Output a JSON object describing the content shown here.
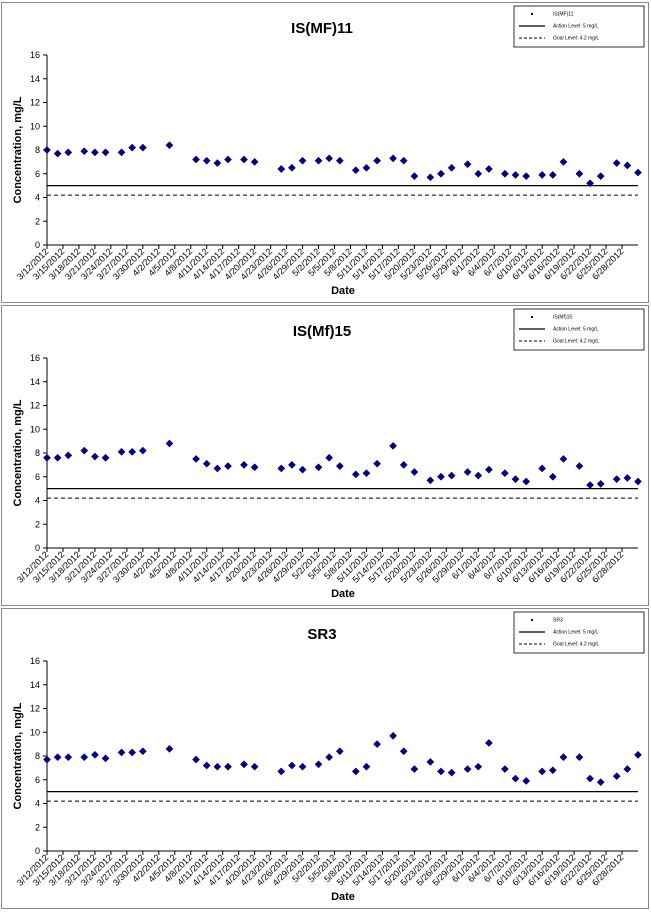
{
  "chart_data": [
    {
      "type": "scatter",
      "title": "IS(MF)11",
      "xlabel": "Date",
      "ylabel": "Concentration, mg/L",
      "ylim": [
        0,
        16
      ],
      "yticks": [
        0,
        2,
        4,
        6,
        8,
        10,
        12,
        14,
        16
      ],
      "grid": false,
      "legend_position": "top-right",
      "xtick_labels": [
        "3/12/2012",
        "3/15/2012",
        "3/18/2012",
        "3/21/2012",
        "3/24/2012",
        "3/27/2012",
        "3/30/2012",
        "4/2/2012",
        "4/5/2012",
        "4/8/2012",
        "4/11/2012",
        "4/14/2012",
        "4/17/2012",
        "4/20/2012",
        "4/23/2012",
        "4/26/2012",
        "4/29/2012",
        "5/2/2012",
        "5/5/2012",
        "5/8/2012",
        "5/11/2012",
        "5/14/2012",
        "5/17/2012",
        "5/20/2012",
        "5/23/2012",
        "5/26/2012",
        "5/29/2012",
        "6/1/2012",
        "6/4/2012",
        "6/7/2012",
        "6/10/2012",
        "6/13/2012",
        "6/16/2012",
        "6/19/2012",
        "6/22/2012",
        "6/25/2012",
        "6/28/2012"
      ],
      "series": [
        {
          "name": "IS(MF)11",
          "marker": "diamond",
          "color": "#000080",
          "x": [
            "3/12/2012",
            "3/14/2012",
            "3/16/2012",
            "3/19/2012",
            "3/21/2012",
            "3/23/2012",
            "3/26/2012",
            "3/28/2012",
            "3/30/2012",
            "4/4/2012",
            "4/9/2012",
            "4/11/2012",
            "4/13/2012",
            "4/15/2012",
            "4/18/2012",
            "4/20/2012",
            "4/25/2012",
            "4/27/2012",
            "4/29/2012",
            "5/2/2012",
            "5/4/2012",
            "5/6/2012",
            "5/9/2012",
            "5/11/2012",
            "5/13/2012",
            "5/16/2012",
            "5/18/2012",
            "5/20/2012",
            "5/23/2012",
            "5/25/2012",
            "5/27/2012",
            "5/30/2012",
            "6/1/2012",
            "6/3/2012",
            "6/6/2012",
            "6/8/2012",
            "6/10/2012",
            "6/13/2012",
            "6/15/2012",
            "6/17/2012",
            "6/20/2012",
            "6/22/2012",
            "6/24/2012",
            "6/27/2012",
            "6/29/2012",
            "7/1/2012"
          ],
          "y": [
            8.0,
            7.7,
            7.8,
            7.9,
            7.8,
            7.8,
            7.8,
            8.2,
            8.2,
            8.4,
            7.2,
            7.1,
            6.9,
            7.2,
            7.2,
            7.0,
            6.4,
            6.5,
            7.1,
            7.1,
            7.3,
            7.1,
            6.3,
            6.5,
            7.1,
            7.3,
            7.1,
            5.8,
            5.7,
            6.0,
            6.5,
            6.8,
            6.0,
            6.4,
            6.0,
            5.9,
            5.8,
            5.9,
            5.9,
            7.0,
            6.0,
            5.2,
            5.8,
            6.9,
            6.7,
            6.1
          ]
        }
      ],
      "reference_lines": [
        {
          "name": "Action Level: 5 mg/L",
          "y": 5.0,
          "style": "solid"
        },
        {
          "name": "Goal Level: 4.2 mg/L",
          "y": 4.2,
          "style": "dashed"
        }
      ]
    },
    {
      "type": "scatter",
      "title": "IS(Mf)15",
      "xlabel": "Date",
      "ylabel": "Concentration, mg/L",
      "ylim": [
        0,
        16
      ],
      "yticks": [
        0,
        2,
        4,
        6,
        8,
        10,
        12,
        14,
        16
      ],
      "grid": false,
      "legend_position": "top-right",
      "xtick_labels": [
        "3/12/2012",
        "3/15/2012",
        "3/18/2012",
        "3/21/2012",
        "3/24/2012",
        "3/27/2012",
        "3/30/2012",
        "4/2/2012",
        "4/5/2012",
        "4/8/2012",
        "4/11/2012",
        "4/14/2012",
        "4/17/2012",
        "4/20/2012",
        "4/23/2012",
        "4/26/2012",
        "4/29/2012",
        "5/2/2012",
        "5/5/2012",
        "5/8/2012",
        "5/11/2012",
        "5/14/2012",
        "5/17/2012",
        "5/20/2012",
        "5/23/2012",
        "5/26/2012",
        "5/29/2012",
        "6/1/2012",
        "6/4/2012",
        "6/7/2012",
        "6/10/2012",
        "6/13/2012",
        "6/16/2012",
        "6/19/2012",
        "6/22/2012",
        "6/25/2012",
        "6/28/2012"
      ],
      "series": [
        {
          "name": "IS(Mf)15",
          "marker": "diamond",
          "color": "#000080",
          "x": [
            "3/12/2012",
            "3/14/2012",
            "3/16/2012",
            "3/19/2012",
            "3/21/2012",
            "3/23/2012",
            "3/26/2012",
            "3/28/2012",
            "3/30/2012",
            "4/4/2012",
            "4/9/2012",
            "4/11/2012",
            "4/13/2012",
            "4/15/2012",
            "4/18/2012",
            "4/20/2012",
            "4/25/2012",
            "4/27/2012",
            "4/29/2012",
            "5/2/2012",
            "5/4/2012",
            "5/6/2012",
            "5/9/2012",
            "5/11/2012",
            "5/13/2012",
            "5/16/2012",
            "5/18/2012",
            "5/20/2012",
            "5/23/2012",
            "5/25/2012",
            "5/27/2012",
            "5/30/2012",
            "6/1/2012",
            "6/3/2012",
            "6/6/2012",
            "6/8/2012",
            "6/10/2012",
            "6/13/2012",
            "6/15/2012",
            "6/17/2012",
            "6/20/2012",
            "6/22/2012",
            "6/24/2012",
            "6/27/2012",
            "6/29/2012",
            "7/1/2012"
          ],
          "y": [
            7.6,
            7.6,
            7.8,
            8.2,
            7.7,
            7.6,
            8.1,
            8.1,
            8.2,
            8.8,
            7.5,
            7.1,
            6.7,
            6.9,
            7.0,
            6.8,
            6.7,
            7.0,
            6.6,
            6.8,
            7.6,
            6.9,
            6.2,
            6.3,
            7.1,
            8.6,
            7.0,
            6.4,
            5.7,
            6.0,
            6.1,
            6.4,
            6.1,
            6.6,
            6.3,
            5.8,
            5.6,
            6.7,
            6.0,
            7.5,
            6.9,
            5.3,
            5.4,
            5.8,
            5.9,
            5.6
          ]
        }
      ],
      "reference_lines": [
        {
          "name": "Action Level: 5 mg/L",
          "y": 5.0,
          "style": "solid"
        },
        {
          "name": "Goal Level: 4.2 mg/L",
          "y": 4.2,
          "style": "dashed"
        }
      ]
    },
    {
      "type": "scatter",
      "title": "SR3",
      "xlabel": "Date",
      "ylabel": "Concentration, mg/L",
      "ylim": [
        0,
        16
      ],
      "yticks": [
        0,
        2,
        4,
        6,
        8,
        10,
        12,
        14,
        16
      ],
      "grid": false,
      "legend_position": "top-right",
      "xtick_labels": [
        "3/12/2012",
        "3/15/2012",
        "3/18/2012",
        "3/21/2012",
        "3/24/2012",
        "3/27/2012",
        "3/30/2012",
        "4/2/2012",
        "4/5/2012",
        "4/8/2012",
        "4/11/2012",
        "4/14/2012",
        "4/17/2012",
        "4/20/2012",
        "4/23/2012",
        "4/26/2012",
        "4/29/2012",
        "5/2/2012",
        "5/5/2012",
        "5/8/2012",
        "5/11/2012",
        "5/14/2012",
        "5/17/2012",
        "5/20/2012",
        "5/23/2012",
        "5/26/2012",
        "5/29/2012",
        "6/1/2012",
        "6/4/2012",
        "6/7/2012",
        "6/10/2012",
        "6/13/2012",
        "6/16/2012",
        "6/19/2012",
        "6/22/2012",
        "6/25/2012",
        "6/28/2012"
      ],
      "series": [
        {
          "name": "SR3",
          "marker": "diamond",
          "color": "#000080",
          "x": [
            "3/12/2012",
            "3/14/2012",
            "3/16/2012",
            "3/19/2012",
            "3/21/2012",
            "3/23/2012",
            "3/26/2012",
            "3/28/2012",
            "3/30/2012",
            "4/4/2012",
            "4/9/2012",
            "4/11/2012",
            "4/13/2012",
            "4/15/2012",
            "4/18/2012",
            "4/20/2012",
            "4/25/2012",
            "4/27/2012",
            "4/29/2012",
            "5/2/2012",
            "5/4/2012",
            "5/6/2012",
            "5/9/2012",
            "5/11/2012",
            "5/13/2012",
            "5/16/2012",
            "5/18/2012",
            "5/20/2012",
            "5/23/2012",
            "5/25/2012",
            "5/27/2012",
            "5/30/2012",
            "6/1/2012",
            "6/3/2012",
            "6/6/2012",
            "6/8/2012",
            "6/10/2012",
            "6/13/2012",
            "6/15/2012",
            "6/17/2012",
            "6/20/2012",
            "6/22/2012",
            "6/24/2012",
            "6/27/2012",
            "6/29/2012",
            "7/1/2012"
          ],
          "y": [
            7.7,
            7.9,
            7.9,
            7.9,
            8.1,
            7.8,
            8.3,
            8.3,
            8.4,
            8.6,
            7.7,
            7.2,
            7.1,
            7.1,
            7.3,
            7.1,
            6.7,
            7.2,
            7.1,
            7.3,
            7.9,
            8.4,
            6.7,
            7.1,
            9.0,
            9.7,
            8.4,
            6.9,
            7.5,
            6.7,
            6.6,
            6.9,
            7.1,
            9.1,
            6.9,
            6.1,
            5.9,
            6.7,
            6.8,
            7.9,
            7.9,
            6.1,
            5.8,
            6.3,
            6.9,
            8.1
          ]
        }
      ],
      "reference_lines": [
        {
          "name": "Action Level: 5 mg/L",
          "y": 5.0,
          "style": "solid"
        },
        {
          "name": "Goal Level: 4.2 mg/L",
          "y": 4.2,
          "style": "dashed"
        }
      ]
    }
  ]
}
